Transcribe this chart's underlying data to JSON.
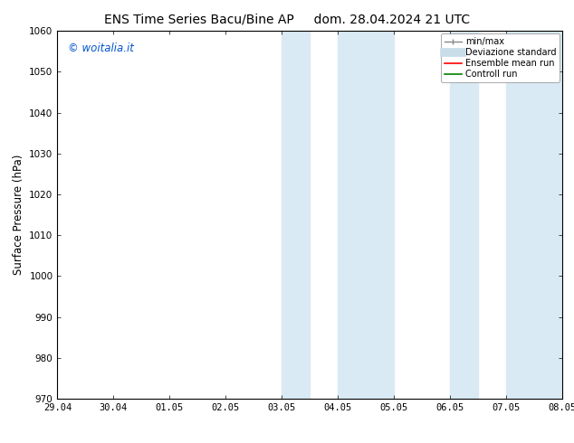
{
  "title_left": "ENS Time Series Bacu/Bine AP",
  "title_right": "dom. 28.04.2024 21 UTC",
  "ylabel": "Surface Pressure (hPa)",
  "ylim": [
    970,
    1060
  ],
  "yticks": [
    970,
    980,
    990,
    1000,
    1010,
    1020,
    1030,
    1040,
    1050,
    1060
  ],
  "x_labels": [
    "29.04",
    "30.04",
    "01.05",
    "02.05",
    "03.05",
    "04.05",
    "05.05",
    "06.05",
    "07.05",
    "08.05"
  ],
  "x_positions": [
    0,
    1,
    2,
    3,
    4,
    5,
    6,
    7,
    8,
    9
  ],
  "x_min": 0,
  "x_max": 9,
  "shaded_regions": [
    {
      "x_start": 4.0,
      "x_end": 4.5,
      "color": "#daeaf5"
    },
    {
      "x_start": 5.0,
      "x_end": 6.0,
      "color": "#daeaf5"
    },
    {
      "x_start": 7.0,
      "x_end": 7.5,
      "color": "#daeaf5"
    },
    {
      "x_start": 8.0,
      "x_end": 9.0,
      "color": "#daeaf5"
    }
  ],
  "watermark_text": "© woitalia.it",
  "watermark_color": "#0055cc",
  "legend_entries": [
    {
      "label": "min/max",
      "color": "#aaaaaa",
      "lw": 1.0
    },
    {
      "label": "Deviazione standard",
      "color": "#ccddee",
      "lw": 6
    },
    {
      "label": "Ensemble mean run",
      "color": "red",
      "lw": 1.2
    },
    {
      "label": "Controll run",
      "color": "green",
      "lw": 1.2
    }
  ],
  "bg_color": "#ffffff",
  "spine_color": "#000000",
  "title_fontsize": 10,
  "tick_fontsize": 7.5,
  "ylabel_fontsize": 8.5,
  "watermark_fontsize": 8.5,
  "legend_fontsize": 7.0
}
